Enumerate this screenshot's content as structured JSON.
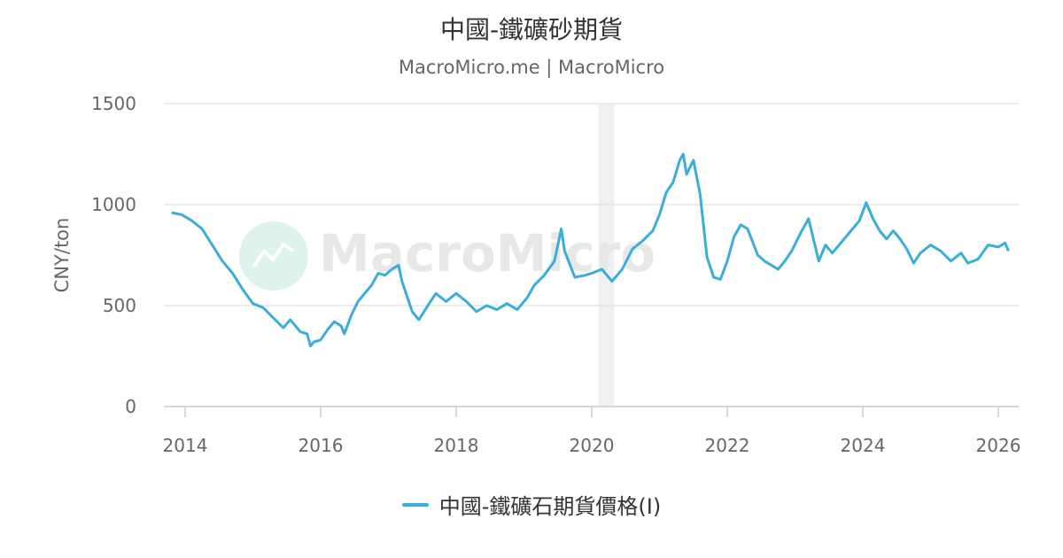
{
  "title": "中國-鐵礦砂期貨",
  "subtitle": "MacroMicro.me | MacroMicro",
  "watermark": "MacroMicro",
  "colors": {
    "series": "#3aaed8",
    "grid": "#e6e6e6",
    "shade": "#f0f0f0",
    "axis_text": "#666666",
    "watermark": "#e8e8e8",
    "logo_circle": "#dff3ee"
  },
  "chart_data": {
    "type": "line",
    "ylabel": "CNY/ton",
    "xlabel": "",
    "ylim": [
      0,
      1500
    ],
    "xlim": [
      2013.7,
      2026.3
    ],
    "y_ticks": [
      0,
      500,
      1000,
      1500
    ],
    "x_ticks": [
      2014,
      2016,
      2018,
      2020,
      2022,
      2024,
      2026
    ],
    "grid": true,
    "legend_position": "bottom-center",
    "shaded_ranges": [
      [
        2020.1,
        2020.33
      ]
    ],
    "series": [
      {
        "name": "中國-鐵礦石期貨價格(I)",
        "x": [
          2013.8,
          2013.95,
          2014.1,
          2014.25,
          2014.4,
          2014.55,
          2014.7,
          2014.85,
          2015.0,
          2015.15,
          2015.3,
          2015.45,
          2015.55,
          2015.7,
          2015.8,
          2015.85,
          2015.9,
          2016.0,
          2016.1,
          2016.2,
          2016.3,
          2016.35,
          2016.45,
          2016.55,
          2016.65,
          2016.75,
          2016.85,
          2016.95,
          2017.05,
          2017.15,
          2017.2,
          2017.35,
          2017.45,
          2017.6,
          2017.7,
          2017.85,
          2018.0,
          2018.15,
          2018.3,
          2018.45,
          2018.6,
          2018.75,
          2018.9,
          2019.05,
          2019.15,
          2019.3,
          2019.45,
          2019.55,
          2019.6,
          2019.75,
          2019.9,
          2020.0,
          2020.15,
          2020.3,
          2020.45,
          2020.6,
          2020.75,
          2020.9,
          2021.0,
          2021.1,
          2021.2,
          2021.3,
          2021.35,
          2021.4,
          2021.5,
          2021.6,
          2021.7,
          2021.8,
          2021.9,
          2022.0,
          2022.1,
          2022.2,
          2022.3,
          2022.45,
          2022.55,
          2022.65,
          2022.75,
          2022.85,
          2022.95,
          2023.1,
          2023.2,
          2023.35,
          2023.45,
          2023.55,
          2023.7,
          2023.85,
          2023.95,
          2024.05,
          2024.15,
          2024.25,
          2024.35,
          2024.45,
          2024.55,
          2024.65,
          2024.75,
          2024.85,
          2025.0,
          2025.15,
          2025.3,
          2025.45,
          2025.55,
          2025.7,
          2025.85,
          2026.0,
          2026.1,
          2026.15
        ],
        "values": [
          960,
          950,
          920,
          880,
          800,
          720,
          660,
          580,
          510,
          490,
          440,
          390,
          430,
          370,
          360,
          300,
          320,
          330,
          380,
          420,
          400,
          360,
          450,
          520,
          560,
          600,
          660,
          650,
          680,
          700,
          620,
          470,
          430,
          510,
          560,
          520,
          560,
          520,
          470,
          500,
          480,
          510,
          480,
          540,
          600,
          650,
          720,
          880,
          770,
          640,
          650,
          660,
          680,
          620,
          680,
          780,
          820,
          870,
          950,
          1060,
          1110,
          1220,
          1250,
          1150,
          1220,
          1050,
          740,
          640,
          630,
          720,
          840,
          900,
          880,
          750,
          720,
          700,
          680,
          720,
          770,
          870,
          930,
          720,
          800,
          760,
          820,
          880,
          920,
          1010,
          930,
          870,
          830,
          870,
          830,
          780,
          710,
          760,
          800,
          770,
          720,
          760,
          710,
          730,
          800,
          790,
          810,
          770
        ]
      }
    ]
  }
}
